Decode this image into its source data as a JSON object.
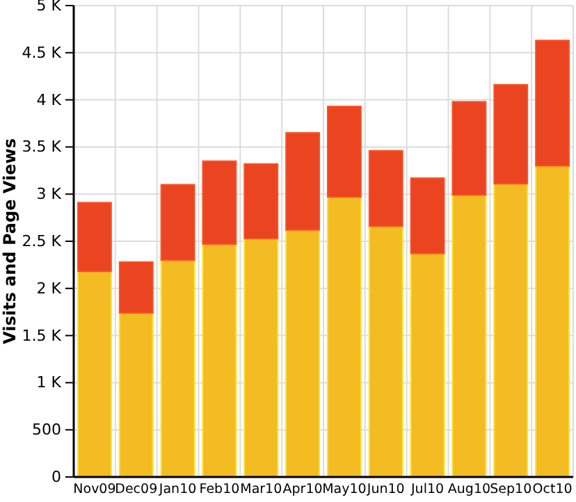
{
  "chart_data": {
    "type": "bar",
    "ylabel": "Visits and Page Views",
    "stacked": true,
    "grid": true,
    "categories": [
      "Nov09",
      "Dec09",
      "Jan10",
      "Feb10",
      "Mar10",
      "Apr10",
      "May10",
      "Jun10",
      "Jul10",
      "Aug10",
      "Sep10",
      "Oct10"
    ],
    "series": [
      {
        "color": "#f2bc22",
        "values": [
          2180,
          1740,
          2300,
          2470,
          2530,
          2620,
          2970,
          2660,
          2370,
          2990,
          3110,
          3300
        ]
      },
      {
        "color": "#ea4420",
        "values": [
          730,
          540,
          800,
          880,
          790,
          1030,
          960,
          800,
          800,
          990,
          1050,
          1330
        ]
      }
    ],
    "ylim": [
      0,
      5000
    ],
    "yticks": [
      0,
      500,
      {
        "value": 1000,
        "label": "1 K"
      },
      {
        "value": 1500,
        "label": "1.5 K"
      },
      {
        "value": 2000,
        "label": "2 K"
      },
      {
        "value": 2500,
        "label": "2.5 K"
      },
      {
        "value": 3000,
        "label": "3 K"
      },
      {
        "value": 3500,
        "label": "3.5 K"
      },
      {
        "value": 4000,
        "label": "4 K"
      },
      {
        "value": 4500,
        "label": "4.5 K"
      },
      {
        "value": 5000,
        "label": "5 K"
      }
    ]
  }
}
